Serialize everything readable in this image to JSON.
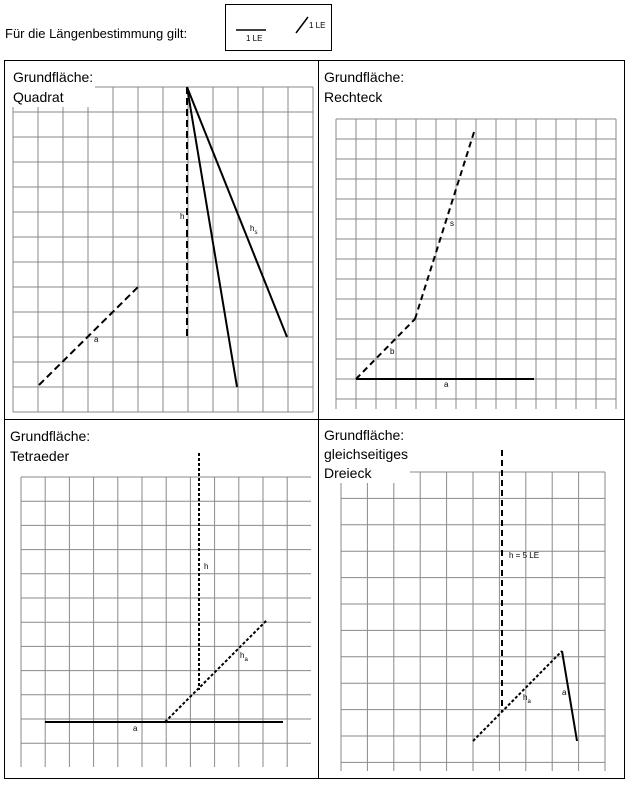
{
  "header": {
    "text": "Für die Längenbestimmung gilt:",
    "legend_label_horizontal": "1 LE",
    "legend_label_diagonal": "1 LE"
  },
  "panels": {
    "quadrat": {
      "label_line1": "Grundfläche:",
      "label_line2": "Quadrat",
      "labels": {
        "a": "a",
        "h": "h",
        "hs_main": "h",
        "hs_sub": "s"
      }
    },
    "rechteck": {
      "label_line1": "Grundfläche:",
      "label_line2": "Rechteck",
      "labels": {
        "a": "a",
        "b": "b",
        "s": "s"
      }
    },
    "tetraeder": {
      "label_line1": "Grundfläche:",
      "label_line2": "Tetraeder",
      "labels": {
        "a": "a",
        "h": "h",
        "ha_main": "h",
        "ha_sub": "a"
      }
    },
    "dreieck": {
      "label_line1": "Grundfläche:",
      "label_line2": "gleichseitiges",
      "label_line3": "Dreieck",
      "labels": {
        "h": "h = 5 LE",
        "ha_main": "h",
        "ha_sub": "a",
        "a": "a"
      }
    }
  }
}
